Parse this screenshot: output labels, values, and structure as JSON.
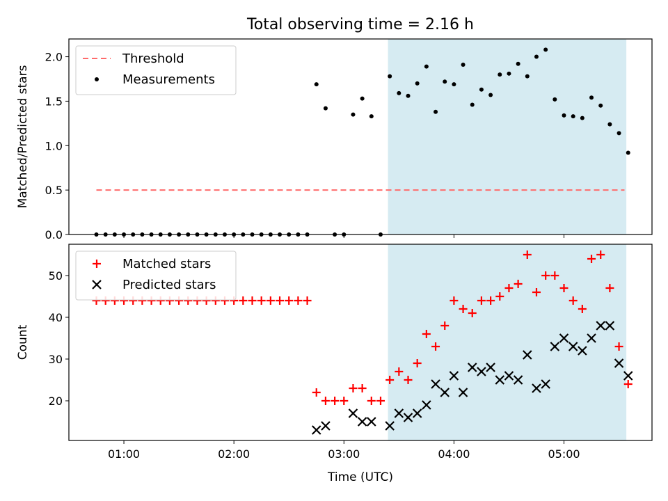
{
  "chart_data": {
    "type": "scatter",
    "title": "Total observing time = 2.16 h",
    "xlabel": "Time (UTC)",
    "x_ticks": [
      "01:00",
      "02:00",
      "03:00",
      "04:00",
      "05:00"
    ],
    "shaded_span": {
      "start": "03:24",
      "end": "05:34",
      "color": "#add8e6"
    },
    "panels": [
      {
        "ylabel": "Matched/Predicted stars",
        "ylim": [
          0,
          2.2
        ],
        "yticks": [
          "0.0",
          "0.5",
          "1.0",
          "1.5",
          "2.0"
        ],
        "legend": "top-left",
        "series": [
          {
            "name": "Threshold",
            "kind": "line",
            "style": "dashed",
            "color": "#ff6b6b",
            "x": [
              "00:45",
              "05:33"
            ],
            "y": [
              0.5,
              0.5
            ]
          },
          {
            "name": "Measurements",
            "kind": "scatter",
            "marker": "dot",
            "color": "#000000",
            "x": [
              "00:45",
              "00:50",
              "00:55",
              "01:00",
              "01:05",
              "01:10",
              "01:15",
              "01:20",
              "01:25",
              "01:30",
              "01:35",
              "01:40",
              "01:45",
              "01:50",
              "01:55",
              "02:00",
              "02:05",
              "02:10",
              "02:15",
              "02:20",
              "02:25",
              "02:30",
              "02:35",
              "02:40",
              "02:45",
              "02:50",
              "02:55",
              "03:00",
              "03:05",
              "03:10",
              "03:15",
              "03:20",
              "03:25",
              "03:30",
              "03:35",
              "03:40",
              "03:45",
              "03:50",
              "03:55",
              "04:00",
              "04:05",
              "04:10",
              "04:15",
              "04:20",
              "04:25",
              "04:30",
              "04:35",
              "04:40",
              "04:45",
              "04:50",
              "04:55",
              "05:00",
              "05:05",
              "05:10",
              "05:15",
              "05:20",
              "05:25",
              "05:30",
              "05:35"
            ],
            "y": [
              0,
              0,
              0,
              0,
              0,
              0,
              0,
              0,
              0,
              0,
              0,
              0,
              0,
              0,
              0,
              0,
              0,
              0,
              0,
              0,
              0,
              0,
              0,
              0,
              1.69,
              1.42,
              0,
              0,
              1.35,
              1.53,
              1.33,
              0,
              1.78,
              1.59,
              1.56,
              1.7,
              1.89,
              1.38,
              1.72,
              1.69,
              1.91,
              1.46,
              1.63,
              1.57,
              1.8,
              1.81,
              1.92,
              1.78,
              2.0,
              2.08,
              1.52,
              1.34,
              1.33,
              1.31,
              1.54,
              1.45,
              1.24,
              1.14,
              0.92
            ]
          }
        ]
      },
      {
        "ylabel": "Count",
        "ylim": [
          10.5,
          57.5
        ],
        "yticks": [
          "20",
          "30",
          "40",
          "50"
        ],
        "legend": "top-left",
        "series": [
          {
            "name": "Matched stars",
            "kind": "scatter",
            "marker": "plus",
            "color": "#ff0000",
            "x": [
              "00:45",
              "00:50",
              "00:55",
              "01:00",
              "01:05",
              "01:10",
              "01:15",
              "01:20",
              "01:25",
              "01:30",
              "01:35",
              "01:40",
              "01:45",
              "01:50",
              "01:55",
              "02:00",
              "02:05",
              "02:10",
              "02:15",
              "02:20",
              "02:25",
              "02:30",
              "02:35",
              "02:40",
              "02:45",
              "02:50",
              "02:55",
              "03:00",
              "03:05",
              "03:10",
              "03:15",
              "03:20",
              "03:25",
              "03:30",
              "03:35",
              "03:40",
              "03:45",
              "03:50",
              "03:55",
              "04:00",
              "04:05",
              "04:10",
              "04:15",
              "04:20",
              "04:25",
              "04:30",
              "04:35",
              "04:40",
              "04:45",
              "04:50",
              "04:55",
              "05:00",
              "05:05",
              "05:10",
              "05:15",
              "05:20",
              "05:25",
              "05:30",
              "05:35"
            ],
            "y": [
              44,
              44,
              44,
              44,
              44,
              44,
              44,
              44,
              44,
              44,
              44,
              44,
              44,
              44,
              44,
              44,
              44,
              44,
              44,
              44,
              44,
              44,
              44,
              44,
              22,
              20,
              20,
              20,
              23,
              23,
              20,
              20,
              25,
              27,
              25,
              29,
              36,
              33,
              38,
              44,
              42,
              41,
              44,
              44,
              45,
              47,
              48,
              55,
              46,
              50,
              50,
              47,
              44,
              42,
              54,
              55,
              47,
              33,
              24
            ]
          },
          {
            "name": "Predicted stars",
            "kind": "scatter",
            "marker": "x",
            "color": "#000000",
            "x": [
              "02:45",
              "02:50",
              "03:05",
              "03:10",
              "03:15",
              "03:25",
              "03:30",
              "03:35",
              "03:40",
              "03:45",
              "03:50",
              "03:55",
              "04:00",
              "04:05",
              "04:10",
              "04:15",
              "04:20",
              "04:25",
              "04:30",
              "04:35",
              "04:40",
              "04:45",
              "04:50",
              "04:55",
              "05:00",
              "05:05",
              "05:10",
              "05:15",
              "05:20",
              "05:25",
              "05:30",
              "05:35"
            ],
            "y": [
              13,
              14,
              17,
              15,
              15,
              14,
              17,
              16,
              17,
              19,
              24,
              22,
              26,
              22,
              28,
              27,
              28,
              25,
              26,
              25,
              31,
              23,
              24,
              33,
              35,
              33,
              32,
              35,
              38,
              38,
              29,
              26
            ]
          }
        ]
      }
    ]
  }
}
